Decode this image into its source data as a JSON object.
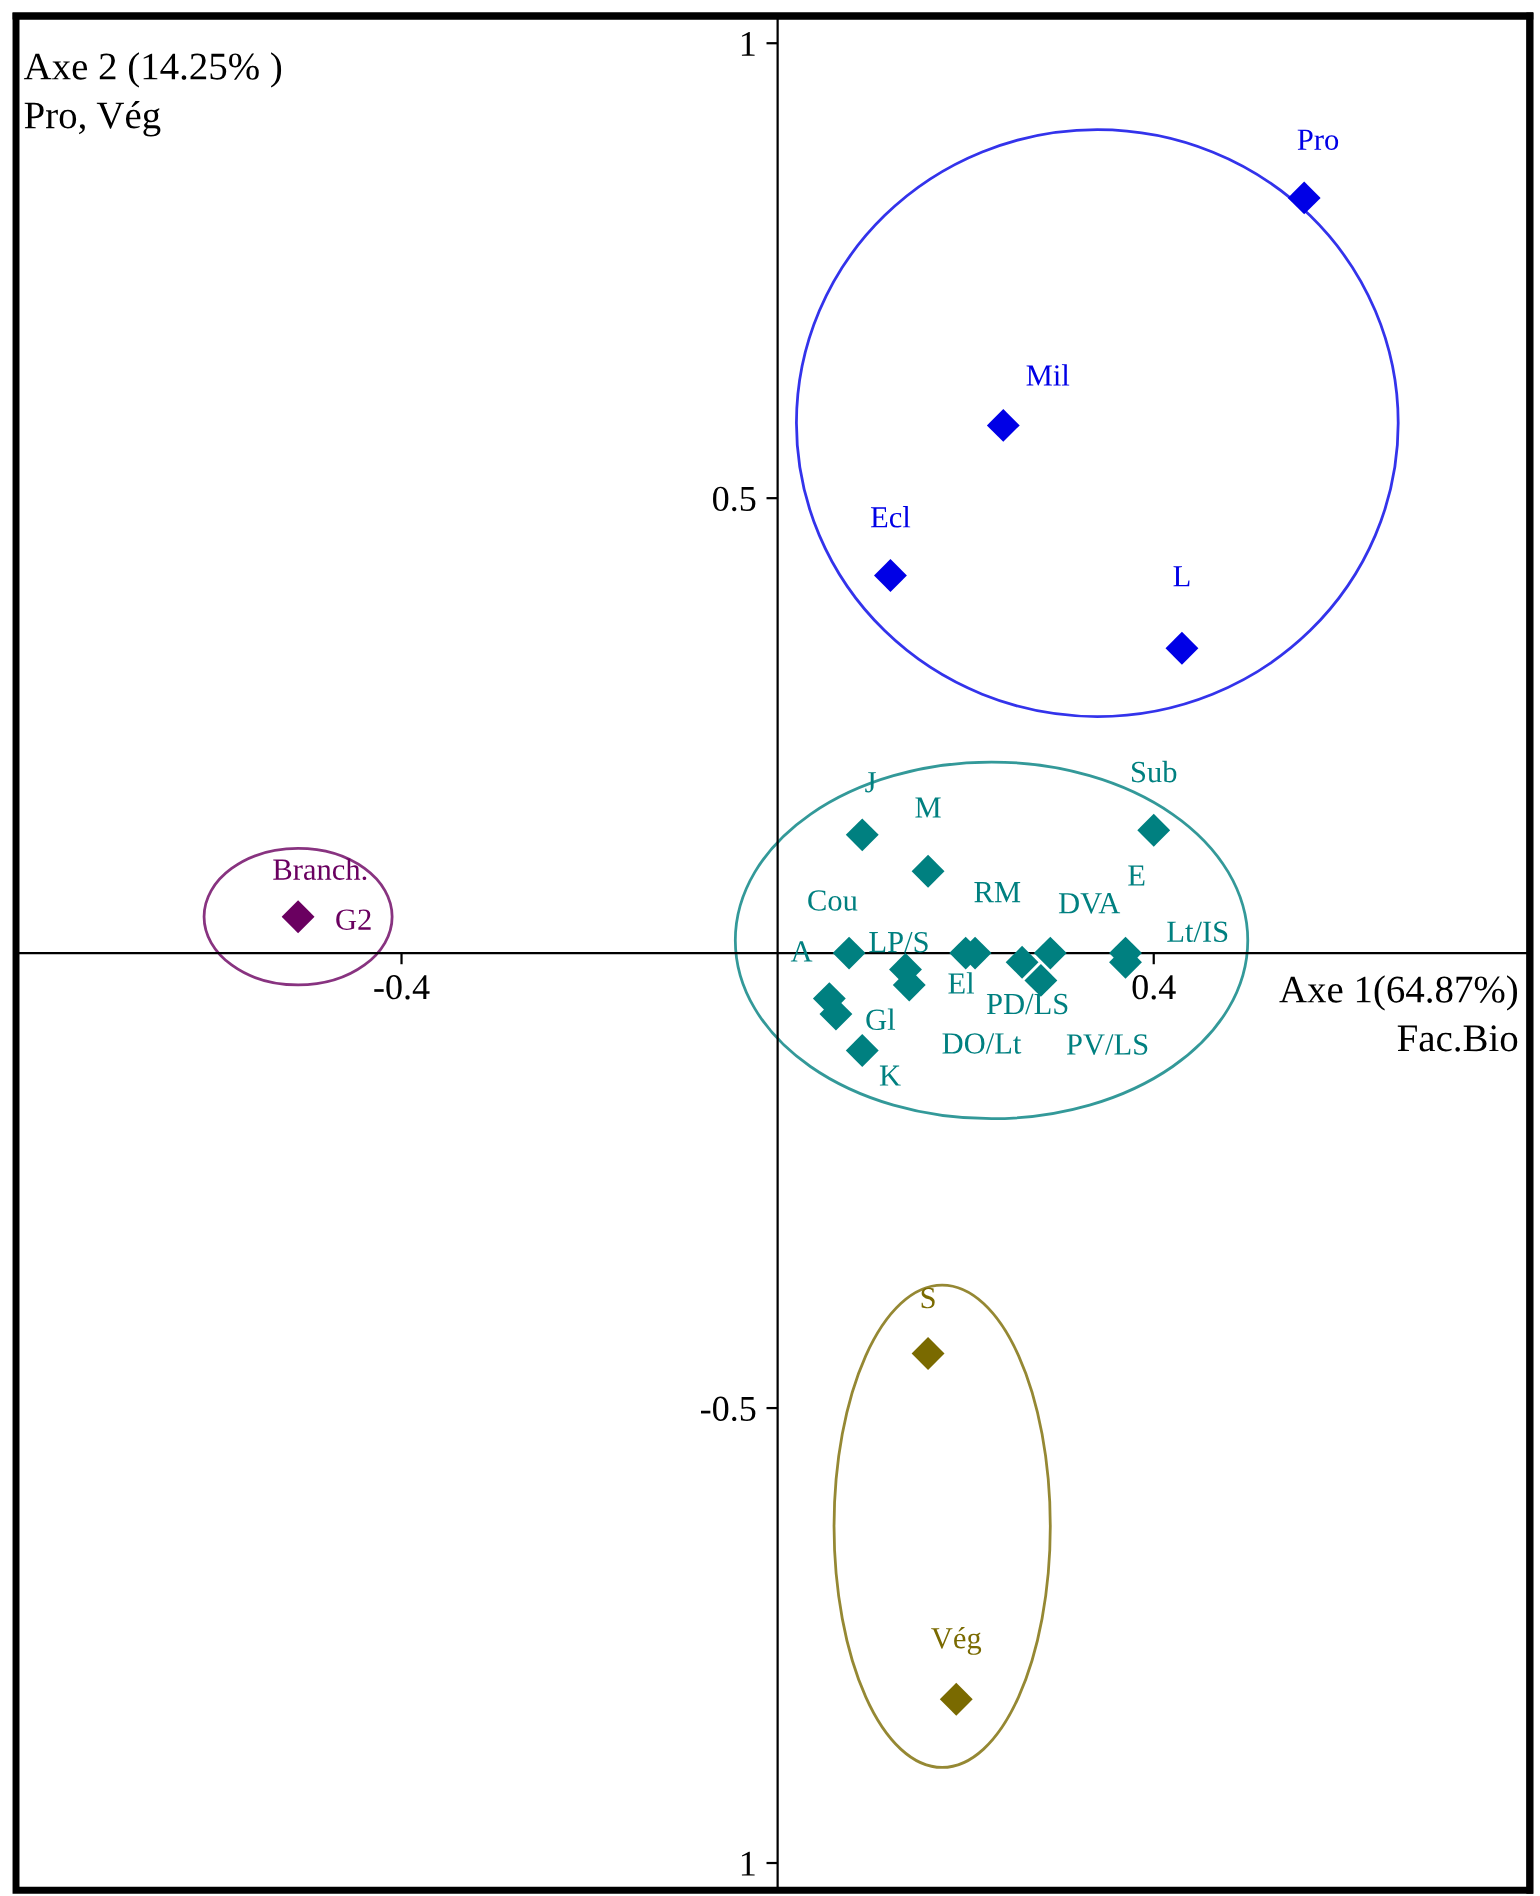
{
  "chart_data": {
    "type": "scatter",
    "xlabel": "Axe 1(64.87%)\nFac.Bio",
    "ylabel": "Axe 2 (14.25% )\nPro, Vég",
    "marker": "diamond",
    "grid": false,
    "legend": false,
    "xlim": [
      -0.81,
      0.8
    ],
    "ylim": [
      -1.03,
      1.03
    ],
    "xticks": [
      -0.4,
      0.4
    ],
    "yticks": [
      {
        "value": -1,
        "label": "1"
      },
      -0.5,
      0.5,
      1
    ],
    "series": [
      {
        "color": "#0000e6",
        "x": [
          0.56,
          0.24,
          0.12,
          0.43
        ],
        "values": [
          0.83,
          0.58,
          0.415,
          0.335
        ]
      },
      {
        "color": "#008080",
        "x": [
          0.09,
          0.16,
          0.4,
          0.076,
          0.055,
          0.062,
          0.09,
          0.136,
          0.14,
          0.2,
          0.21,
          0.29,
          0.26,
          0.28,
          0.37,
          0.37
        ],
        "values": [
          0.13,
          0.09,
          0.135,
          0.0,
          -0.05,
          -0.067,
          -0.107,
          -0.018,
          -0.035,
          0.0,
          0.0,
          0.0,
          -0.01,
          -0.03,
          0.0,
          -0.01
        ]
      },
      {
        "color": "#7a6a00",
        "x": [
          0.16,
          0.19
        ],
        "values": [
          -0.44,
          -0.82
        ]
      },
      {
        "color": "#6a0060",
        "x": [
          -0.51
        ],
        "values": [
          0.04
        ]
      }
    ],
    "annotations": [
      {
        "text": "Pro",
        "x": 0.56,
        "y": 0.83
      },
      {
        "text": "Mil",
        "x": 0.24,
        "y": 0.58
      },
      {
        "text": "Ecl",
        "x": 0.12,
        "y": 0.415
      },
      {
        "text": "L",
        "x": 0.43,
        "y": 0.335
      },
      {
        "text": "J",
        "x": 0.09,
        "y": 0.13
      },
      {
        "text": "M",
        "x": 0.16,
        "y": 0.09
      },
      {
        "text": "Sub",
        "x": 0.4,
        "y": 0.135
      },
      {
        "text": "Cou",
        "x": 0.076,
        "y": 0.0
      },
      {
        "text": "A",
        "x": 0.055,
        "y": -0.05
      },
      {
        "text": "Gl",
        "x": 0.062,
        "y": -0.067
      },
      {
        "text": "K",
        "x": 0.09,
        "y": -0.107
      },
      {
        "text": "El",
        "x": 0.136,
        "y": -0.018
      },
      {
        "text": "DO/Lt",
        "x": 0.14,
        "y": -0.035
      },
      {
        "text": "LP/S",
        "x": 0.2,
        "y": 0.0
      },
      {
        "text": "RM",
        "x": 0.21,
        "y": 0.0
      },
      {
        "text": "DVA",
        "x": 0.29,
        "y": 0.0
      },
      {
        "text": "PD/LS",
        "x": 0.26,
        "y": -0.01
      },
      {
        "text": "PV/LS",
        "x": 0.28,
        "y": -0.03
      },
      {
        "text": "E",
        "x": 0.37,
        "y": 0.0
      },
      {
        "text": "Lt/IS",
        "x": 0.37,
        "y": -0.01
      },
      {
        "text": "S",
        "x": 0.16,
        "y": -0.44
      },
      {
        "text": "Vég",
        "x": 0.19,
        "y": -0.82
      },
      {
        "text": "Branch.",
        "x": -0.51,
        "y": 0.04
      },
      {
        "text": "G2",
        "x": -0.51,
        "y": 0.04
      }
    ]
  }
}
